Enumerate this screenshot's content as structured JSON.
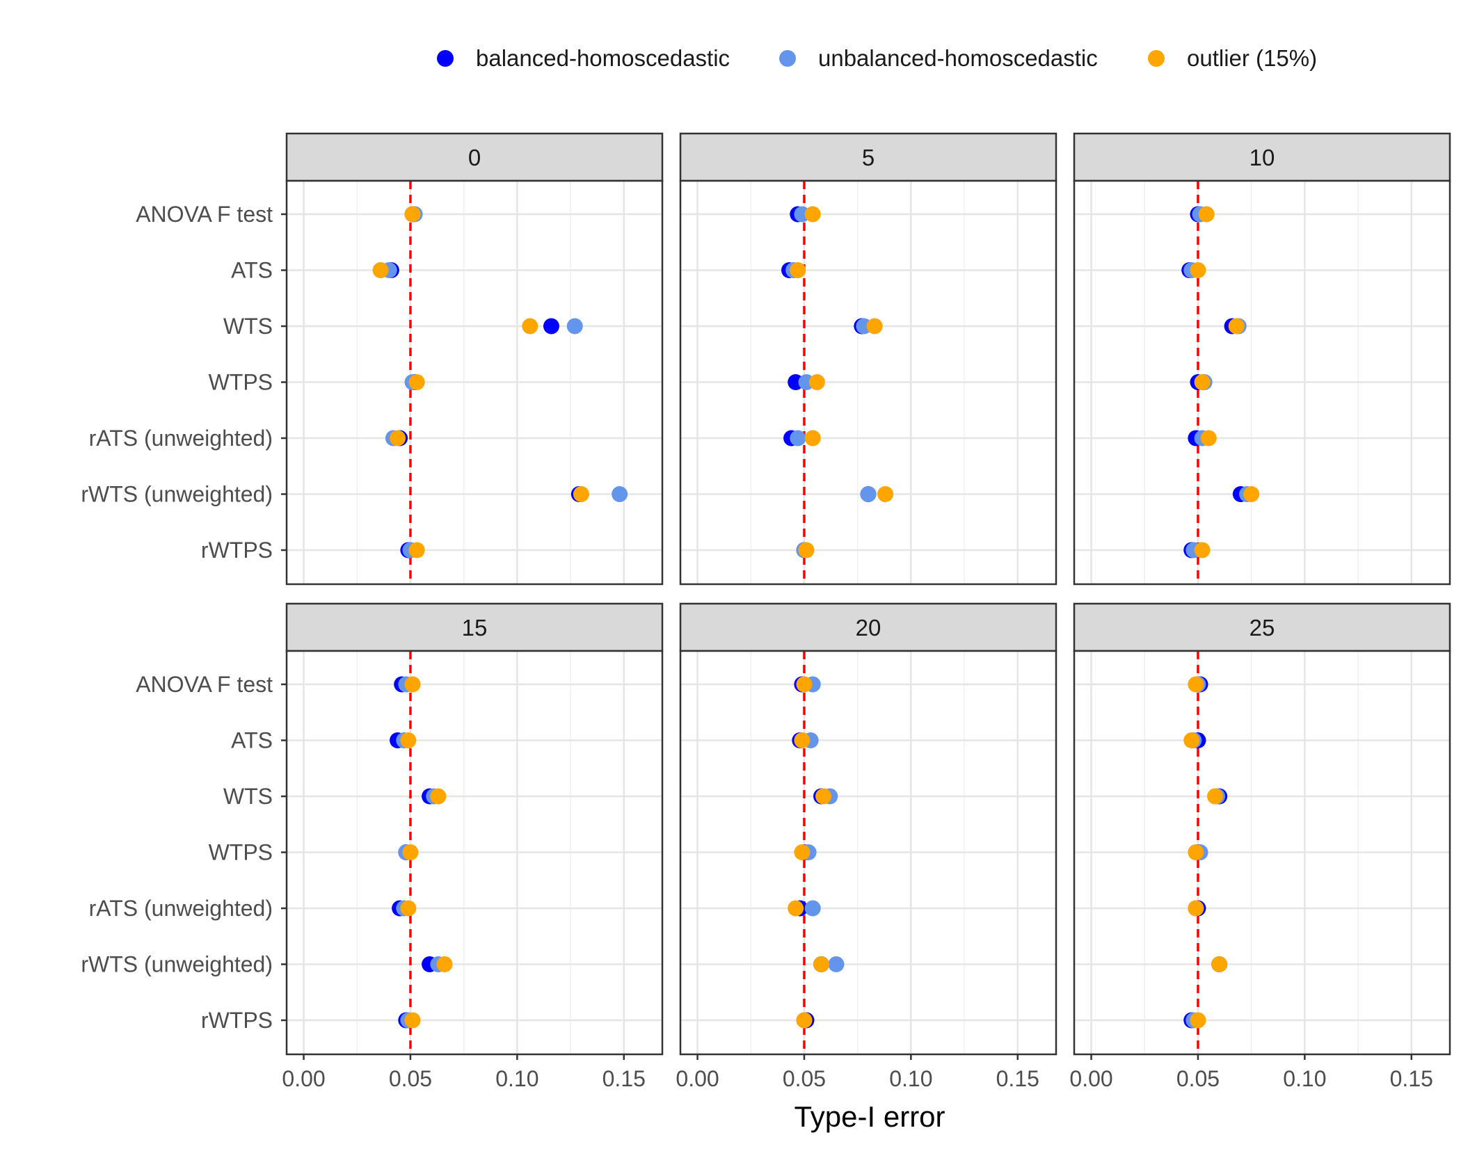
{
  "chart_data": {
    "type": "scatter",
    "title": "",
    "xlabel": "Type-I error",
    "ylabel": "",
    "xlim": [
      -0.008,
      0.168
    ],
    "x_ticks": [
      0.0,
      0.05,
      0.1,
      0.15
    ],
    "x_tick_labels": [
      "0.00",
      "0.05",
      "0.10",
      "0.15"
    ],
    "reference_line": {
      "x": 0.05,
      "color": "#FF0000",
      "style": "dashed"
    },
    "categories": [
      "ANOVA F test",
      "ATS",
      "WTS",
      "WTPS",
      "rATS (unweighted)",
      "rWTS (unweighted)",
      "rWTPS"
    ],
    "legend": {
      "position": "top",
      "entries": [
        {
          "name": "balanced-homoscedastic",
          "color": "#0000FF"
        },
        {
          "name": "unbalanced-homoscedastic",
          "color": "#6495ED"
        },
        {
          "name": "outlier (15%)",
          "color": "#FFA500"
        }
      ]
    },
    "panels": [
      {
        "label": "0",
        "series": [
          {
            "name": "balanced-homoscedastic",
            "values": [
              0.051,
              0.041,
              0.116,
              0.052,
              0.045,
              0.129,
              0.049
            ]
          },
          {
            "name": "unbalanced-homoscedastic",
            "values": [
              0.052,
              0.04,
              0.127,
              0.051,
              0.042,
              0.148,
              0.05
            ]
          },
          {
            "name": "outlier (15%)",
            "values": [
              0.051,
              0.036,
              0.106,
              0.053,
              0.044,
              0.13,
              0.053
            ]
          }
        ]
      },
      {
        "label": "5",
        "series": [
          {
            "name": "balanced-homoscedastic",
            "values": [
              0.047,
              0.043,
              0.077,
              0.046,
              0.044,
              0.08,
              0.05
            ]
          },
          {
            "name": "unbalanced-homoscedastic",
            "values": [
              0.049,
              0.045,
              0.078,
              0.051,
              0.047,
              0.08,
              0.05
            ]
          },
          {
            "name": "outlier (15%)",
            "values": [
              0.054,
              0.047,
              0.083,
              0.056,
              0.054,
              0.088,
              0.051
            ]
          }
        ]
      },
      {
        "label": "10",
        "series": [
          {
            "name": "balanced-homoscedastic",
            "values": [
              0.05,
              0.046,
              0.066,
              0.05,
              0.049,
              0.07,
              0.047
            ]
          },
          {
            "name": "unbalanced-homoscedastic",
            "values": [
              0.051,
              0.047,
              0.069,
              0.053,
              0.052,
              0.073,
              0.048
            ]
          },
          {
            "name": "outlier (15%)",
            "values": [
              0.054,
              0.05,
              0.068,
              0.052,
              0.055,
              0.075,
              0.052
            ]
          }
        ]
      },
      {
        "label": "15",
        "series": [
          {
            "name": "balanced-homoscedastic",
            "values": [
              0.046,
              0.044,
              0.059,
              0.048,
              0.045,
              0.059,
              0.048
            ]
          },
          {
            "name": "unbalanced-homoscedastic",
            "values": [
              0.048,
              0.047,
              0.061,
              0.048,
              0.047,
              0.063,
              0.049
            ]
          },
          {
            "name": "outlier (15%)",
            "values": [
              0.051,
              0.049,
              0.063,
              0.05,
              0.049,
              0.066,
              0.051
            ]
          }
        ]
      },
      {
        "label": "20",
        "series": [
          {
            "name": "balanced-homoscedastic",
            "values": [
              0.049,
              0.048,
              0.058,
              0.05,
              0.048,
              0.058,
              0.051
            ]
          },
          {
            "name": "unbalanced-homoscedastic",
            "values": [
              0.054,
              0.053,
              0.062,
              0.052,
              0.054,
              0.065,
              0.05
            ]
          },
          {
            "name": "outlier (15%)",
            "values": [
              0.05,
              0.049,
              0.059,
              0.049,
              0.046,
              0.058,
              0.05
            ]
          }
        ]
      },
      {
        "label": "25",
        "series": [
          {
            "name": "balanced-homoscedastic",
            "values": [
              0.051,
              0.05,
              0.06,
              0.05,
              0.05,
              0.06,
              0.047
            ]
          },
          {
            "name": "unbalanced-homoscedastic",
            "values": [
              0.05,
              0.048,
              0.059,
              0.051,
              0.049,
              0.06,
              0.048
            ]
          },
          {
            "name": "outlier (15%)",
            "values": [
              0.049,
              0.047,
              0.058,
              0.049,
              0.049,
              0.06,
              0.05
            ]
          }
        ]
      }
    ]
  }
}
